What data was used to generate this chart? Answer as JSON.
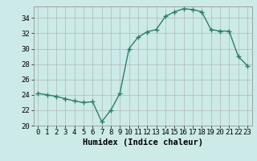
{
  "x": [
    0,
    1,
    2,
    3,
    4,
    5,
    6,
    7,
    8,
    9,
    10,
    11,
    12,
    13,
    14,
    15,
    16,
    17,
    18,
    19,
    20,
    21,
    22,
    23
  ],
  "y": [
    24.2,
    24.0,
    23.8,
    23.5,
    23.2,
    23.0,
    23.1,
    20.5,
    22.0,
    24.2,
    30.0,
    31.5,
    32.2,
    32.5,
    34.2,
    34.8,
    35.2,
    35.1,
    34.8,
    32.5,
    32.3,
    32.3,
    29.0,
    27.8
  ],
  "line_color": "#2e7d6e",
  "marker": "+",
  "marker_size": 4,
  "marker_linewidth": 1.0,
  "line_width": 1.0,
  "bg_color": "#cceae7",
  "grid_color": "#b0b8b8",
  "xlabel": "Humidex (Indice chaleur)",
  "xlim": [
    -0.5,
    23.5
  ],
  "ylim": [
    20,
    35.5
  ],
  "yticks": [
    20,
    22,
    24,
    26,
    28,
    30,
    32,
    34
  ],
  "xticks": [
    0,
    1,
    2,
    3,
    4,
    5,
    6,
    7,
    8,
    9,
    10,
    11,
    12,
    13,
    14,
    15,
    16,
    17,
    18,
    19,
    20,
    21,
    22,
    23
  ],
  "xlabel_fontsize": 7.5,
  "tick_fontsize": 6.5
}
